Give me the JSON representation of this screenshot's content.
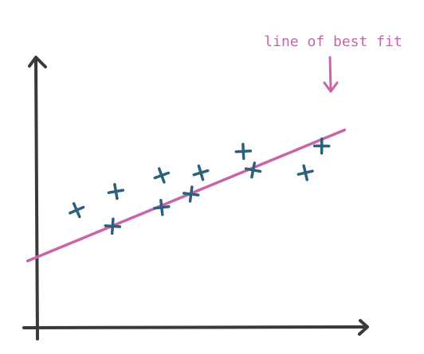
{
  "chart_data": {
    "type": "scatter",
    "title": "",
    "xlabel": "",
    "ylabel": "",
    "grid": false,
    "xlim": [
      0,
      100
    ],
    "ylim": [
      0,
      100
    ],
    "points": [
      {
        "x": 12,
        "y": 44
      },
      {
        "x": 24,
        "y": 51
      },
      {
        "x": 23,
        "y": 38
      },
      {
        "x": 38,
        "y": 57
      },
      {
        "x": 38,
        "y": 45
      },
      {
        "x": 47,
        "y": 50
      },
      {
        "x": 50,
        "y": 58
      },
      {
        "x": 63,
        "y": 66
      },
      {
        "x": 66,
        "y": 59
      },
      {
        "x": 82,
        "y": 58
      },
      {
        "x": 87,
        "y": 68
      }
    ],
    "fit_line": {
      "x": [
        -3,
        94
      ],
      "y": [
        25,
        74
      ]
    },
    "annotation": {
      "text": "line of best fit"
    },
    "colors": {
      "axis": "#3a3a3a",
      "points": "#2d607d",
      "fit_line": "#c865aa",
      "annotation": "#c865aa"
    }
  }
}
